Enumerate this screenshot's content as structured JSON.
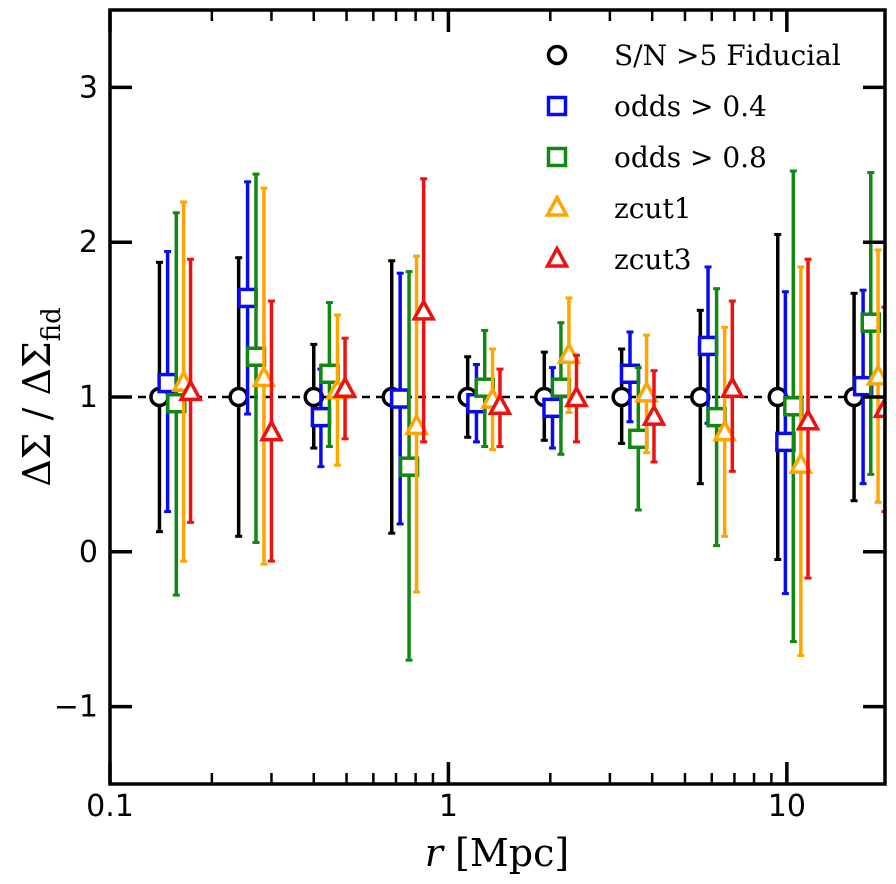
{
  "chart_data": {
    "type": "scatter",
    "title": "",
    "xlabel": "r [Mpc]",
    "ylabel": "ΔΣ / ΔΣ_fid",
    "xscale": "log",
    "xlim": [
      0.1,
      19.5
    ],
    "ylim": [
      -1.5,
      3.5
    ],
    "grid": false,
    "legend_position": "top-right",
    "reference_line": {
      "y": 1.0,
      "style": "dashed",
      "color": "#000000"
    },
    "x_tick_labels": [
      {
        "value": 0.1,
        "label": "0.1"
      },
      {
        "value": 1,
        "label": "1"
      },
      {
        "value": 10,
        "label": "10"
      }
    ],
    "y_tick_labels": [
      {
        "value": -1,
        "label": "−1"
      },
      {
        "value": 0,
        "label": "0"
      },
      {
        "value": 1,
        "label": "1"
      },
      {
        "value": 2,
        "label": "2"
      },
      {
        "value": 3,
        "label": "3"
      }
    ],
    "series": [
      {
        "name": "S/N >5 Fiducial",
        "marker": "circle",
        "color": "#000000",
        "x": [
          0.14,
          0.24,
          0.4,
          0.68,
          1.14,
          1.92,
          3.25,
          5.55,
          9.4,
          15.8
        ],
        "y": [
          1.0,
          1.0,
          1.0,
          1.0,
          1.0,
          1.0,
          1.0,
          1.0,
          1.0,
          1.0
        ],
        "ylow": [
          0.13,
          0.1,
          0.67,
          0.12,
          0.74,
          0.72,
          0.7,
          0.44,
          -0.05,
          0.33
        ],
        "yhigh": [
          1.87,
          1.9,
          1.34,
          1.88,
          1.26,
          1.29,
          1.31,
          1.56,
          2.05,
          1.67
        ]
      },
      {
        "name": "odds > 0.4",
        "marker": "square",
        "color": "#0a0aee",
        "x": [
          0.148,
          0.255,
          0.42,
          0.72,
          1.21,
          2.03,
          3.44,
          5.85,
          9.9,
          16.8
        ],
        "y": [
          1.09,
          1.64,
          0.87,
          0.99,
          0.96,
          0.93,
          1.15,
          1.33,
          0.71,
          1.07
        ],
        "ylow": [
          0.26,
          0.89,
          0.55,
          0.18,
          0.71,
          0.67,
          0.84,
          0.83,
          -0.27,
          0.44
        ],
        "yhigh": [
          1.94,
          2.39,
          1.18,
          1.8,
          1.21,
          1.19,
          1.42,
          1.84,
          1.68,
          1.69
        ]
      },
      {
        "name": "odds > 0.8",
        "marker": "square",
        "color": "#118811",
        "x": [
          0.157,
          0.27,
          0.445,
          0.765,
          1.28,
          2.15,
          3.64,
          6.2,
          10.45,
          17.7
        ],
        "y": [
          0.96,
          1.26,
          1.15,
          0.55,
          1.06,
          1.06,
          0.73,
          0.87,
          0.94,
          1.48
        ],
        "ylow": [
          -0.28,
          0.06,
          0.68,
          -0.7,
          0.68,
          0.63,
          0.27,
          0.04,
          -0.58,
          0.5
        ],
        "yhigh": [
          2.19,
          2.44,
          1.61,
          1.81,
          1.43,
          1.48,
          1.19,
          1.7,
          2.46,
          2.45
        ]
      },
      {
        "name": "zcut1",
        "marker": "triangle",
        "color": "#ffa500",
        "x": [
          0.165,
          0.285,
          0.47,
          0.805,
          1.35,
          2.27,
          3.85,
          6.55,
          11.0,
          18.6
        ],
        "y": [
          1.09,
          1.12,
          1.04,
          0.81,
          0.98,
          1.27,
          1.02,
          0.77,
          0.56,
          1.13
        ],
        "ylow": [
          -0.06,
          -0.08,
          0.56,
          -0.26,
          0.66,
          0.9,
          0.64,
          0.1,
          -0.67,
          0.32
        ],
        "yhigh": [
          2.26,
          2.35,
          1.53,
          1.91,
          1.31,
          1.64,
          1.4,
          1.45,
          1.84,
          1.95
        ]
      },
      {
        "name": "zcut3",
        "marker": "triangle",
        "color": "#ee1111",
        "x": [
          0.173,
          0.3,
          0.495,
          0.845,
          1.42,
          2.39,
          4.05,
          6.9,
          11.55,
          19.5
        ],
        "y": [
          1.03,
          0.77,
          1.05,
          1.55,
          0.94,
          0.99,
          0.87,
          1.05,
          0.84,
          0.92
        ],
        "ylow": [
          0.19,
          -0.06,
          0.73,
          0.71,
          0.68,
          0.71,
          0.58,
          0.52,
          -0.17,
          0.26
        ],
        "yhigh": [
          1.89,
          1.62,
          1.38,
          2.41,
          1.18,
          1.27,
          1.17,
          1.62,
          1.89,
          1.58
        ]
      }
    ]
  }
}
